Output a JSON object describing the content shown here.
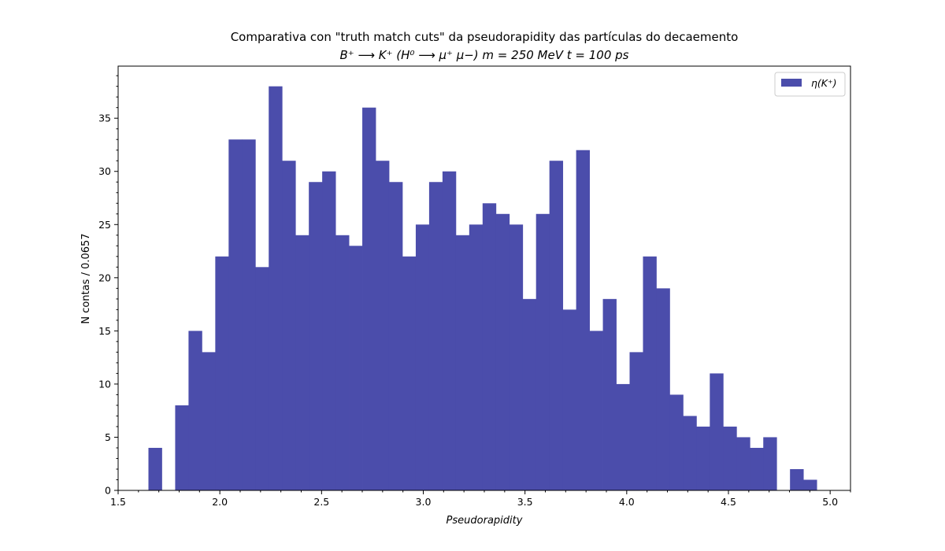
{
  "chart_data": {
    "type": "bar",
    "title": "Comparativa con \"truth match cuts\" da pseudorapidity das partículas do decaemento",
    "subtitle": "B⁺ ⟶ K⁺ (H⁰ ⟶ μ⁺ μ−)    m = 250 MeV    t = 100 ps",
    "xlabel": "Pseudorapidity",
    "ylabel": "N contas / 0.0657",
    "xlim": [
      1.5,
      5.1
    ],
    "ylim": [
      0,
      39.9
    ],
    "xticks": [
      1.5,
      2.0,
      2.5,
      3.0,
      3.5,
      4.0,
      4.5,
      5.0
    ],
    "xtick_labels": [
      "1.5",
      "2.0",
      "2.5",
      "3.0",
      "3.5",
      "4.0",
      "4.5",
      "5.0"
    ],
    "yticks": [
      0,
      5,
      10,
      15,
      20,
      25,
      30,
      35
    ],
    "ytick_labels": [
      "0",
      "5",
      "10",
      "15",
      "20",
      "25",
      "30",
      "35"
    ],
    "bin_start": 1.649,
    "bin_width": 0.0657,
    "values": [
      4,
      0,
      8,
      15,
      13,
      22,
      33,
      33,
      21,
      38,
      31,
      24,
      29,
      30,
      24,
      23,
      36,
      31,
      29,
      22,
      25,
      29,
      30,
      24,
      25,
      27,
      26,
      25,
      18,
      26,
      31,
      17,
      32,
      15,
      18,
      10,
      13,
      22,
      19,
      9,
      7,
      6,
      11,
      6,
      5,
      4,
      5,
      0,
      2,
      1
    ],
    "series": [
      {
        "name": "η(K⁺)",
        "color": "#4b4dab"
      }
    ],
    "grid": false,
    "legend_position": "top-right"
  }
}
